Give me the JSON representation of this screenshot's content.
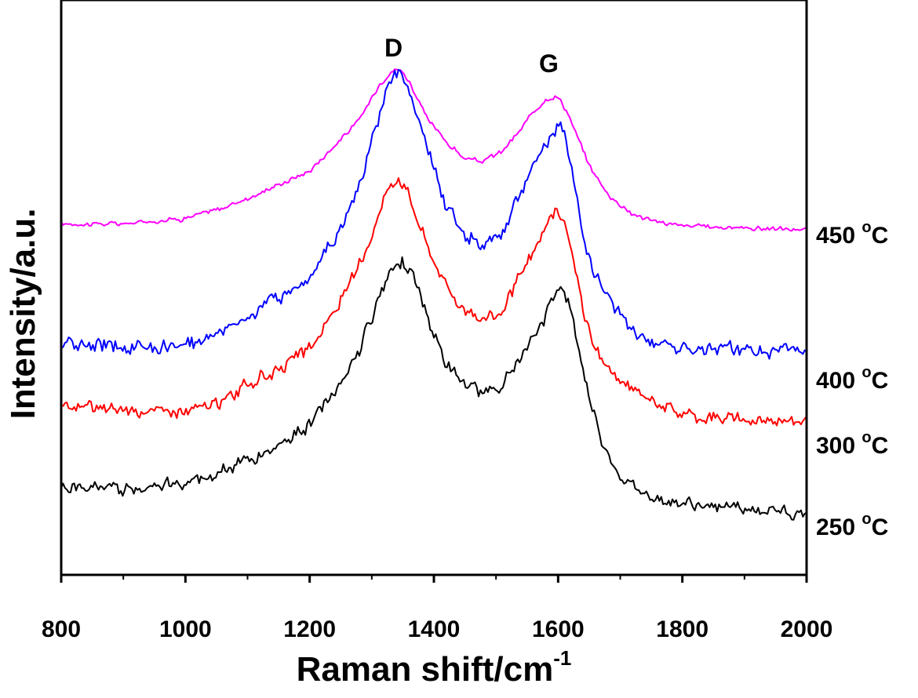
{
  "chart_data": {
    "type": "line",
    "xlabel": "Raman shift/cm",
    "xlabel_sup": "-1",
    "ylabel": "Intensity/a.u.",
    "xlim": [
      800,
      2000
    ],
    "x_ticks": [
      "800",
      "1000",
      "1200",
      "1400",
      "1600",
      "1800",
      "2000"
    ],
    "y_ticks_shown": false,
    "legend": "inline labels at right",
    "grid": false,
    "annotations": [
      {
        "text": "D",
        "x": 1335
      },
      {
        "text": "G",
        "x": 1585
      }
    ],
    "series": [
      {
        "name": "450 °C",
        "label_main": "450 ",
        "label_sup": "o",
        "label_unit": "C",
        "color": "#ff00ff",
        "x": [
          800,
          900,
          1000,
          1060,
          1100,
          1150,
          1200,
          1240,
          1280,
          1310,
          1330,
          1345,
          1360,
          1390,
          1420,
          1450,
          1480,
          1510,
          1540,
          1560,
          1580,
          1600,
          1615,
          1630,
          1650,
          1680,
          1720,
          1760,
          1800,
          1900,
          2000
        ],
        "y": [
          0.05,
          0.05,
          0.08,
          0.13,
          0.18,
          0.25,
          0.32,
          0.45,
          0.58,
          0.75,
          0.83,
          0.84,
          0.78,
          0.58,
          0.47,
          0.38,
          0.37,
          0.42,
          0.53,
          0.62,
          0.69,
          0.7,
          0.62,
          0.5,
          0.35,
          0.2,
          0.1,
          0.06,
          0.04,
          0.03,
          0.02
        ],
        "noise": 0.015
      },
      {
        "name": "400 °C",
        "label_main": "400 ",
        "label_sup": "o",
        "label_unit": "C",
        "color": "#0000ff",
        "x": [
          800,
          900,
          1000,
          1050,
          1100,
          1150,
          1200,
          1240,
          1280,
          1310,
          1330,
          1345,
          1360,
          1390,
          1420,
          1450,
          1480,
          1510,
          1540,
          1570,
          1590,
          1605,
          1620,
          1640,
          1660,
          1700,
          1740,
          1800,
          1900,
          2000
        ],
        "y": [
          0.06,
          0.05,
          0.05,
          0.1,
          0.16,
          0.22,
          0.3,
          0.43,
          0.62,
          0.85,
          1.0,
          1.02,
          0.95,
          0.75,
          0.55,
          0.45,
          0.42,
          0.45,
          0.6,
          0.72,
          0.8,
          0.85,
          0.7,
          0.45,
          0.3,
          0.15,
          0.08,
          0.05,
          0.04,
          0.03
        ],
        "noise": 0.03
      },
      {
        "name": "300 °C",
        "label_main": "300 ",
        "label_sup": "o",
        "label_unit": "C",
        "color": "#ff0000",
        "x": [
          800,
          900,
          1000,
          1060,
          1100,
          1150,
          1200,
          1240,
          1280,
          1310,
          1330,
          1345,
          1360,
          1390,
          1420,
          1450,
          1480,
          1510,
          1540,
          1570,
          1595,
          1610,
          1625,
          1640,
          1660,
          1700,
          1760,
          1800,
          1900,
          2000
        ],
        "y": [
          0.08,
          0.07,
          0.06,
          0.1,
          0.17,
          0.22,
          0.3,
          0.45,
          0.62,
          0.82,
          0.95,
          0.97,
          0.9,
          0.7,
          0.55,
          0.45,
          0.42,
          0.45,
          0.58,
          0.72,
          0.85,
          0.78,
          0.65,
          0.45,
          0.3,
          0.17,
          0.1,
          0.05,
          0.03,
          0.03
        ],
        "noise": 0.03
      },
      {
        "name": "250 °C",
        "label_main": "250 ",
        "label_sup": "o",
        "label_unit": "C",
        "color": "#000000",
        "x": [
          800,
          900,
          1000,
          1060,
          1100,
          1150,
          1200,
          1240,
          1280,
          1310,
          1335,
          1350,
          1365,
          1390,
          1420,
          1450,
          1480,
          1510,
          1540,
          1570,
          1600,
          1615,
          1630,
          1650,
          1670,
          1700,
          1740,
          1800,
          1900,
          2000
        ],
        "y": [
          0.14,
          0.14,
          0.16,
          0.2,
          0.24,
          0.3,
          0.38,
          0.5,
          0.66,
          0.85,
          0.98,
          1.0,
          0.95,
          0.78,
          0.6,
          0.52,
          0.5,
          0.53,
          0.62,
          0.74,
          0.9,
          0.85,
          0.7,
          0.48,
          0.32,
          0.18,
          0.12,
          0.08,
          0.06,
          0.05
        ],
        "noise": 0.03
      }
    ]
  }
}
